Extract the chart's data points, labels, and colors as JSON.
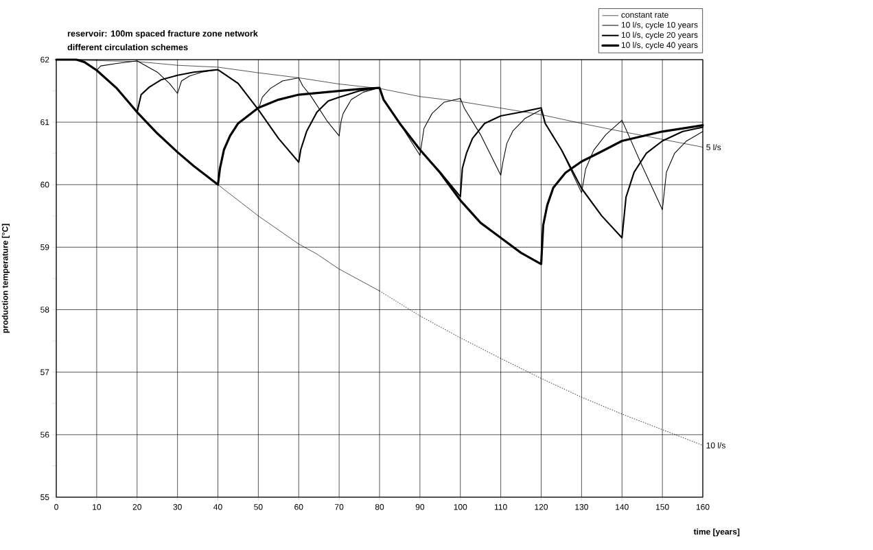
{
  "chart_data": {
    "type": "line",
    "title": "reservoir: 100m spaced fracture zone network",
    "subtitle": "different circulation schemes",
    "xlabel": "time [years]",
    "ylabel": "production temperature [°C]",
    "xlim": [
      0,
      160
    ],
    "xticks": [
      0,
      10,
      20,
      30,
      40,
      50,
      60,
      70,
      80,
      90,
      100,
      110,
      120,
      130,
      140,
      150,
      160
    ],
    "ylim": [
      55,
      62
    ],
    "yticks": [
      55,
      56,
      57,
      58,
      59,
      60,
      61,
      62
    ],
    "grid": true,
    "legend": "top right",
    "marker": "none",
    "annotations": [
      {
        "text": "5 l/s",
        "x": 160,
        "y": 60.6
      },
      {
        "text": "10 l/s",
        "x": 160,
        "y": 55.83
      }
    ],
    "series": [
      {
        "name": "constant rate",
        "color": "#000000",
        "line_style": "solid",
        "x": [
          0,
          20,
          30,
          40,
          50,
          60,
          70,
          80,
          90,
          100,
          120,
          130,
          140,
          160
        ],
        "values": [
          62,
          61.97,
          61.91,
          61.88,
          61.79,
          61.71,
          61.61,
          61.54,
          61.41,
          61.33,
          61.12,
          60.98,
          60.85,
          60.6
        ]
      },
      {
        "color": "#000000",
        "line_style": "solid",
        "x": [
          0,
          5,
          7,
          10,
          15,
          20,
          25,
          30,
          34,
          40,
          50,
          60,
          64.5,
          70,
          80
        ],
        "values": [
          62,
          62,
          61.96,
          61.83,
          61.54,
          61.16,
          60.82,
          60.52,
          60.3,
          60.0,
          59.5,
          59.05,
          58.89,
          58.65,
          58.3
        ]
      },
      {
        "color": "#000000",
        "line_style": "dotted",
        "x": [
          80,
          90,
          100,
          110,
          120,
          130,
          140,
          150,
          160
        ],
        "values": [
          58.3,
          57.9,
          57.55,
          57.22,
          56.9,
          56.6,
          56.33,
          56.08,
          55.83
        ]
      },
      {
        "name": "10 l/s, cycle 10 years",
        "color": "#000000",
        "line_style": "solid",
        "x": [
          0,
          5,
          7,
          10,
          11,
          15,
          20,
          25,
          28,
          30,
          31,
          33,
          36,
          40,
          45,
          50,
          51,
          53,
          56,
          60,
          61,
          63,
          67,
          70,
          70.5,
          71,
          73,
          76,
          80,
          81,
          85,
          90,
          91,
          93,
          96,
          100,
          101,
          105,
          110,
          110.5,
          111.5,
          113,
          116,
          120,
          121,
          125,
          130,
          131,
          133,
          136,
          140,
          145,
          150,
          151,
          153,
          156,
          160
        ],
        "values": [
          62,
          62,
          61.96,
          61.83,
          61.9,
          61.94,
          61.98,
          61.8,
          61.62,
          61.46,
          61.66,
          61.74,
          61.8,
          61.84,
          61.62,
          61.2,
          61.4,
          61.54,
          61.66,
          61.71,
          61.58,
          61.42,
          61.02,
          60.78,
          61.02,
          61.14,
          61.36,
          61.48,
          61.55,
          61.36,
          60.98,
          60.47,
          60.9,
          61.14,
          61.32,
          61.38,
          61.22,
          60.8,
          60.15,
          60.35,
          60.66,
          60.86,
          61.06,
          61.2,
          60.98,
          60.56,
          59.87,
          60.25,
          60.55,
          60.8,
          61.03,
          60.3,
          59.6,
          60.2,
          60.5,
          60.7,
          60.85
        ]
      },
      {
        "name": "10 l/s, cycle 20 years",
        "color": "#000000",
        "line_style": "solid",
        "x": [
          0,
          5,
          7,
          10,
          15,
          20,
          21,
          23,
          26,
          30,
          34,
          40,
          45,
          50,
          55,
          60,
          60.5,
          62,
          64.5,
          67.3,
          70,
          75,
          80,
          81,
          85,
          90,
          95,
          100,
          100.5,
          101.5,
          103,
          106,
          110,
          115,
          120,
          121,
          125,
          130,
          135,
          140,
          141,
          143,
          146,
          150,
          155,
          160
        ],
        "values": [
          62,
          62,
          61.96,
          61.83,
          61.54,
          61.16,
          61.44,
          61.56,
          61.68,
          61.75,
          61.8,
          61.84,
          61.62,
          61.2,
          60.74,
          60.36,
          60.56,
          60.86,
          61.16,
          61.34,
          61.4,
          61.5,
          61.55,
          61.36,
          60.98,
          60.56,
          60.2,
          59.81,
          60.26,
          60.5,
          60.74,
          60.98,
          61.1,
          61.16,
          61.23,
          60.98,
          60.56,
          59.94,
          59.5,
          59.15,
          59.8,
          60.2,
          60.5,
          60.7,
          60.85,
          60.92
        ]
      },
      {
        "name": "10 l/s, cycle 40 years",
        "color": "#000000",
        "line_style": "solid",
        "x": [
          0,
          5,
          7,
          10,
          15,
          20,
          25,
          30,
          34,
          40,
          40.5,
          41.5,
          43,
          45,
          50,
          55,
          60,
          65,
          70,
          75,
          80,
          81,
          85,
          90,
          95,
          100,
          105,
          110,
          115,
          120,
          120.5,
          121.5,
          123,
          126,
          130,
          134,
          140,
          150,
          160
        ],
        "values": [
          62,
          62,
          61.96,
          61.83,
          61.54,
          61.16,
          60.82,
          60.52,
          60.3,
          60.0,
          60.26,
          60.56,
          60.78,
          60.98,
          61.23,
          61.36,
          61.44,
          61.47,
          61.5,
          61.53,
          61.55,
          61.36,
          60.98,
          60.56,
          60.19,
          59.75,
          59.39,
          59.15,
          58.91,
          58.73,
          59.35,
          59.67,
          59.95,
          60.19,
          60.37,
          60.5,
          60.7,
          60.85,
          60.95
        ]
      }
    ]
  }
}
